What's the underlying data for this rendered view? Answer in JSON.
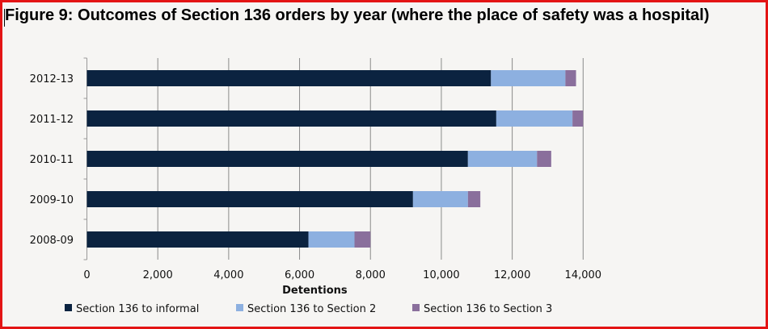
{
  "chart_data": {
    "type": "bar",
    "orientation": "horizontal",
    "stacked": true,
    "title": "Figure 9:  Outcomes of Section 136 orders by year (where the place of safety was a hospital)",
    "xlabel": "Detentions",
    "ylabel": "",
    "xlim": [
      0,
      14000
    ],
    "xticks": [
      "0",
      "2,000",
      "4,000",
      "6,000",
      "8,000",
      "10,000",
      "12,000",
      "14,000"
    ],
    "grid": true,
    "legend_position": "bottom",
    "categories": [
      "2012-13",
      "2011-12",
      "2010-11",
      "2009-10",
      "2008-09"
    ],
    "series": [
      {
        "name": "Section 136 to informal",
        "color": "#0b2340",
        "values": [
          11400,
          11550,
          10750,
          9200,
          6250
        ]
      },
      {
        "name": "Section 136 to Section 2",
        "color": "#8db0e0",
        "values": [
          2100,
          2150,
          1950,
          1550,
          1300
        ]
      },
      {
        "name": "Section 136 to Section 3",
        "color": "#8a6f9c",
        "values": [
          300,
          300,
          400,
          350,
          450
        ]
      }
    ]
  },
  "frame_color": "#e31414"
}
